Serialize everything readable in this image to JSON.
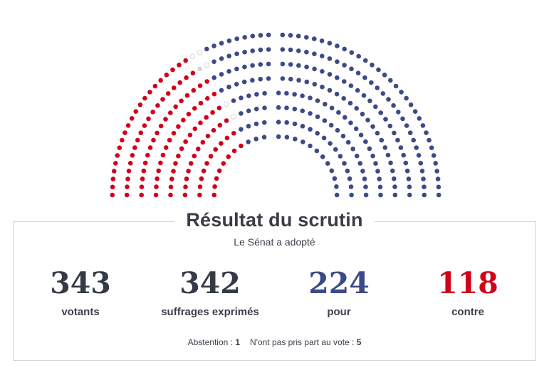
{
  "hemicycle": {
    "colors": {
      "pour": "#3c4a87",
      "contre": "#d0021b",
      "abstention": "#d3d4d6",
      "non_votant": "#ffffff"
    },
    "counts": {
      "pour": 224,
      "contre": 118,
      "abstention": 1,
      "non_votant": 5
    }
  },
  "result": {
    "title": "Résultat du scrutin",
    "outcome": "Le Sénat a adopté",
    "stats": [
      {
        "value": "343",
        "label": "votants"
      },
      {
        "value": "342",
        "label": "suffrages exprimés"
      },
      {
        "value": "224",
        "label": "pour"
      },
      {
        "value": "118",
        "label": "contre"
      }
    ],
    "abstention_label": "Abstention : ",
    "abstention_value": "1",
    "non_participation_label": "N'ont pas pris part au vote : ",
    "non_participation_value": "5"
  }
}
